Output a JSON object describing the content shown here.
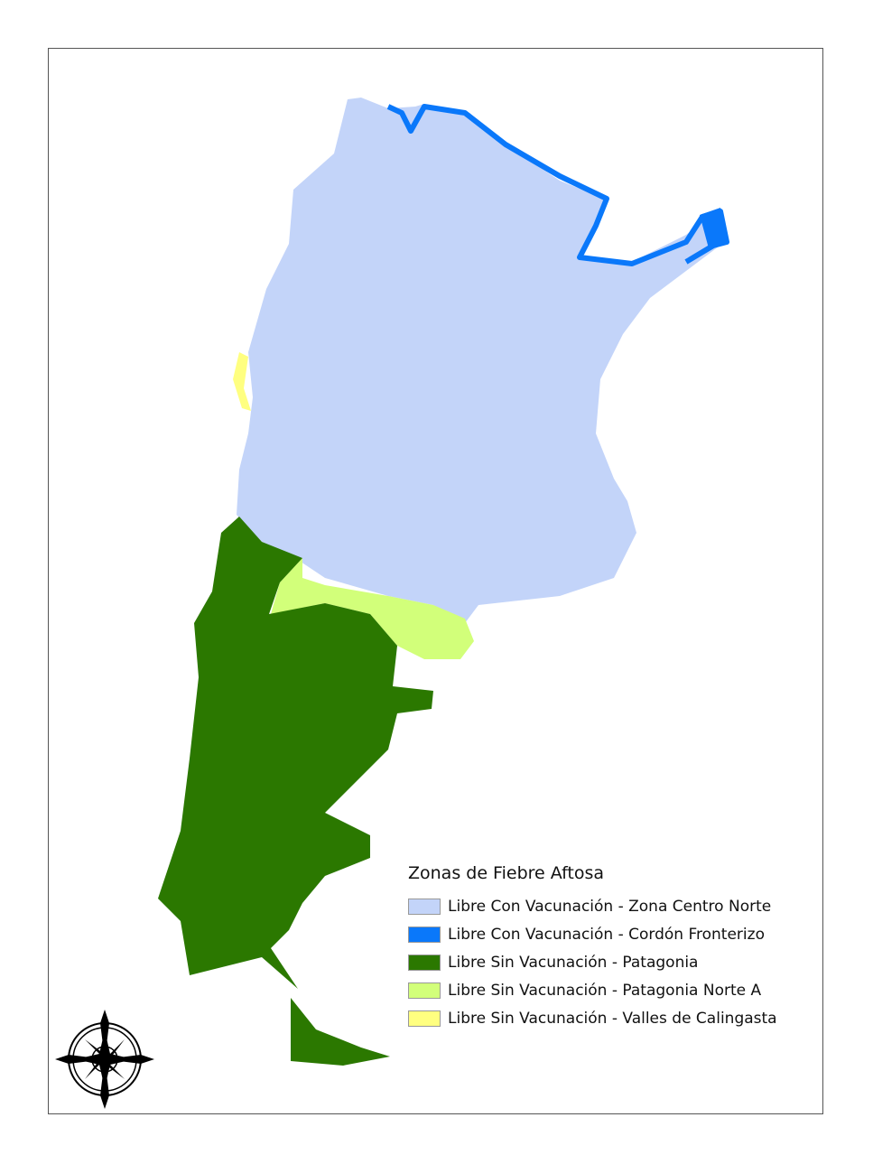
{
  "legend": {
    "title": "Zonas de Fiebre Aftosa",
    "items": [
      {
        "label": "Libre Con Vacunación - Zona Centro Norte",
        "color": "#C3D4F9"
      },
      {
        "label": "Libre Con Vacunación - Cordón Fronterizo",
        "color": "#0A78FA"
      },
      {
        "label": "Libre Sin Vacunación - Patagonia",
        "color": "#2B7800"
      },
      {
        "label": "Libre Sin Vacunación - Patagonia Norte A",
        "color": "#D2FF7A"
      },
      {
        "label": "Libre Sin Vacunación - Valles de Calingasta",
        "color": "#FFFF80"
      }
    ]
  },
  "icons": {
    "compass": "compass-rose-icon"
  }
}
